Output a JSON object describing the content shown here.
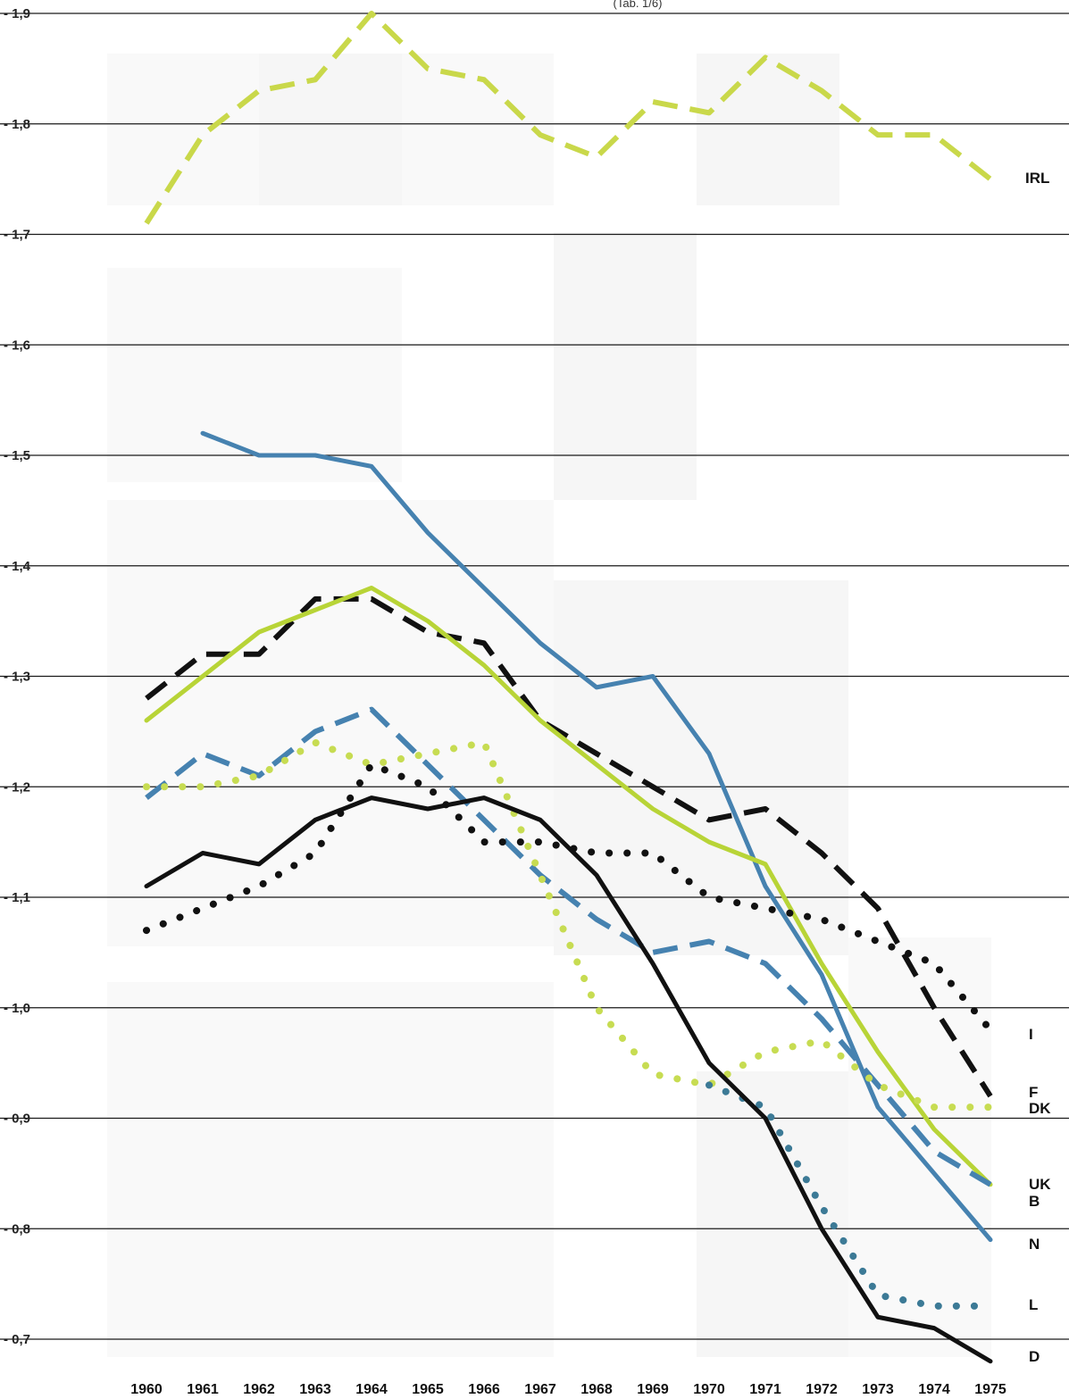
{
  "chart_data": {
    "type": "line",
    "caption": "(Tab. 1/6)",
    "x": [
      1960,
      1961,
      1962,
      1963,
      1964,
      1965,
      1966,
      1967,
      1968,
      1969,
      1970,
      1971,
      1972,
      1973,
      1974,
      1975
    ],
    "x_tick_labels": [
      "1960",
      "1961",
      "1962",
      "1963",
      "1964",
      "1965",
      "1966",
      "1967",
      "1968",
      "1969",
      "1970",
      "1971",
      "1972",
      "1973",
      "1974",
      "1975"
    ],
    "y_tick_labels": [
      "1,9",
      "1,8",
      "1,7",
      "1,6",
      "1,5",
      "1,4",
      "1,3",
      "1,2",
      "1,1",
      "1,0",
      "0,9",
      "0,8",
      "0,7"
    ],
    "y_ticks": [
      1.9,
      1.8,
      1.7,
      1.6,
      1.5,
      1.4,
      1.3,
      1.2,
      1.1,
      1.0,
      0.9,
      0.8,
      0.7
    ],
    "ylim": [
      0.7,
      1.9
    ],
    "grid": "horizontal",
    "series": [
      {
        "name": "IRL",
        "color": "#c9d84a",
        "style": "dashed",
        "values": [
          1.71,
          1.79,
          1.83,
          1.84,
          1.9,
          1.85,
          1.84,
          1.79,
          1.77,
          1.82,
          1.81,
          1.86,
          1.83,
          1.79,
          1.79,
          1.75
        ]
      },
      {
        "name": "N",
        "color": "#4682b0",
        "style": "solid",
        "values": [
          null,
          1.52,
          1.5,
          1.5,
          1.49,
          1.43,
          1.38,
          1.33,
          1.29,
          1.3,
          1.23,
          1.11,
          1.03,
          0.91,
          0.85,
          0.79
        ]
      },
      {
        "name": "F",
        "color": "#111111",
        "style": "dashed",
        "values": [
          1.28,
          1.32,
          1.32,
          1.37,
          1.37,
          1.34,
          1.33,
          1.26,
          1.23,
          1.2,
          1.17,
          1.18,
          1.14,
          1.09,
          1.0,
          0.92
        ]
      },
      {
        "name": "UK",
        "color": "#b8d437",
        "style": "solid",
        "values": [
          1.26,
          1.3,
          1.34,
          1.36,
          1.38,
          1.35,
          1.31,
          1.26,
          1.22,
          1.18,
          1.15,
          1.13,
          1.04,
          0.96,
          0.89,
          0.84
        ]
      },
      {
        "name": "B",
        "color": "#4682b0",
        "style": "dashed",
        "values": [
          1.19,
          1.23,
          1.21,
          1.25,
          1.27,
          1.22,
          1.17,
          1.12,
          1.08,
          1.05,
          1.06,
          1.04,
          0.99,
          0.93,
          0.87,
          0.84
        ]
      },
      {
        "name": "DK",
        "color": "#c7dc52",
        "style": "dotted",
        "values": [
          1.2,
          1.2,
          1.21,
          1.24,
          1.22,
          1.23,
          1.24,
          1.12,
          1.0,
          0.94,
          0.93,
          0.96,
          0.97,
          0.93,
          0.91,
          0.91
        ]
      },
      {
        "name": "I",
        "color": "#111111",
        "style": "dotted",
        "values": [
          1.07,
          1.09,
          1.11,
          1.14,
          1.22,
          1.2,
          1.15,
          1.15,
          1.14,
          1.14,
          1.1,
          1.09,
          1.08,
          1.06,
          1.04,
          0.98
        ]
      },
      {
        "name": "L",
        "color": "#3c7a96",
        "style": "dotted",
        "values": [
          null,
          null,
          null,
          null,
          null,
          null,
          null,
          null,
          null,
          null,
          0.93,
          0.91,
          0.82,
          0.74,
          0.73,
          0.73
        ]
      },
      {
        "name": "D",
        "color": "#111111",
        "style": "solid",
        "values": [
          1.11,
          1.14,
          1.13,
          1.17,
          1.19,
          1.18,
          1.19,
          1.17,
          1.12,
          1.04,
          0.95,
          0.9,
          0.8,
          0.72,
          0.71,
          0.68
        ]
      }
    ]
  }
}
